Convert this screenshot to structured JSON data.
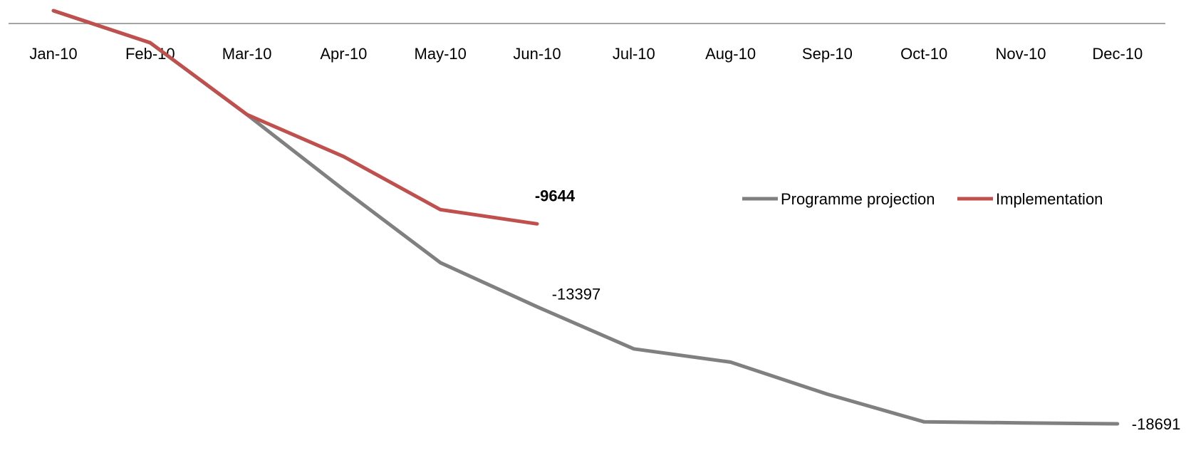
{
  "chart_data": {
    "type": "line",
    "title": "",
    "xlabel": "",
    "ylabel": "",
    "categories": [
      "Jan-10",
      "Feb-10",
      "Mar-10",
      "Apr-10",
      "May-10",
      "Jun-10",
      "Jul-10",
      "Aug-10",
      "Sep-10",
      "Oct-10",
      "Nov-10",
      "Dec-10"
    ],
    "ylim": [
      -19500,
      500
    ],
    "grid": false,
    "legend_position": "right",
    "series": [
      {
        "name": "Programme projection",
        "color": "#808080",
        "values": [
          0,
          -1450,
          -4700,
          -8100,
          -11400,
          -13397,
          -15300,
          -15900,
          -17350,
          -18600,
          -18650,
          -18691
        ]
      },
      {
        "name": "Implementation",
        "color": "#c0504d",
        "values": [
          0,
          -1450,
          -4700,
          -6600,
          -9000,
          -9644,
          null,
          null,
          null,
          null,
          null,
          null
        ]
      }
    ],
    "data_labels": [
      {
        "series": 0,
        "category": "Jun-10",
        "text": "-13397",
        "bold": false
      },
      {
        "series": 0,
        "category": "Dec-10",
        "text": "-18691",
        "bold": false
      },
      {
        "series": 1,
        "category": "Jun-10",
        "text": "-9644",
        "bold": true
      }
    ]
  }
}
